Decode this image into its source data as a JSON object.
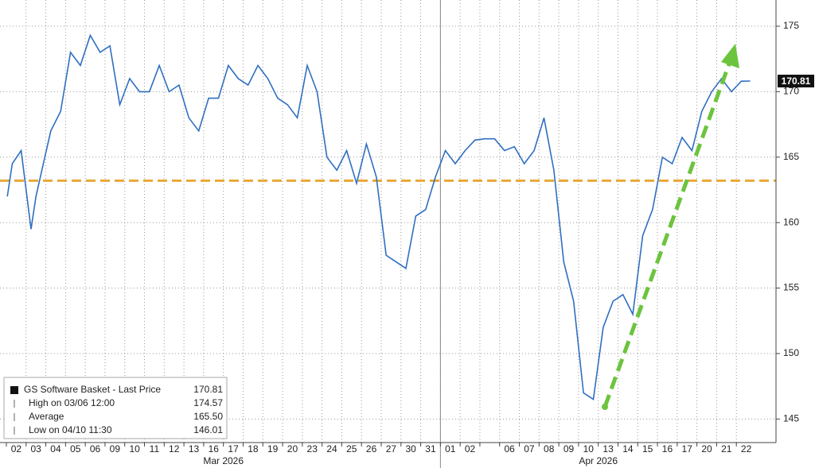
{
  "chart_data": {
    "type": "line",
    "categories": [
      "02",
      "03",
      "04",
      "05",
      "06",
      "09",
      "10",
      "11",
      "12",
      "13",
      "16",
      "17",
      "18",
      "19",
      "20",
      "23",
      "24",
      "25",
      "26",
      "27",
      "30",
      "31",
      "01",
      "02",
      null,
      "06",
      "07",
      "08",
      "09",
      "10",
      "13",
      "14",
      "15",
      "16",
      "17",
      "20",
      "21",
      "22"
    ],
    "months": [
      {
        "label": "Mar 2026",
        "from": 0,
        "to": 22
      },
      {
        "label": "Apr 2026",
        "from": 22,
        "to": 38
      }
    ],
    "xlim": [
      0,
      38
    ],
    "ylim": [
      143.2,
      177
    ],
    "yticks": [
      145,
      150,
      155,
      160,
      165,
      170,
      175
    ],
    "grid": true,
    "series": [
      {
        "name": "GS Software Basket - Last Price",
        "color": "#2f6fc0",
        "x": [
          0.05,
          0.3,
          0.75,
          1.25,
          1.5,
          1.8,
          2.25,
          2.75,
          3.25,
          3.75,
          4.25,
          4.75,
          5.25,
          5.75,
          6.25,
          6.75,
          7.25,
          7.75,
          8.25,
          8.75,
          9.25,
          9.75,
          10.25,
          10.75,
          11.25,
          11.75,
          12.25,
          12.75,
          13.25,
          13.75,
          14.25,
          14.75,
          15.25,
          15.75,
          16.25,
          16.75,
          17.25,
          17.75,
          18.25,
          18.75,
          19.25,
          19.75,
          20.25,
          20.75,
          21.25,
          21.75,
          22.25,
          22.75,
          23.25,
          23.75,
          24.25,
          24.75,
          25.25,
          25.75,
          26.25,
          26.75,
          27.25,
          27.75,
          28.25,
          28.75,
          29.25,
          29.75,
          30.25,
          30.75,
          31.25,
          31.75,
          32.25,
          32.75,
          33.25,
          33.75,
          34.25,
          34.75,
          35.25,
          35.75,
          36.25,
          36.75,
          37.25,
          37.7
        ],
        "values": [
          162,
          164.5,
          165.5,
          159.5,
          162,
          164,
          167,
          168.5,
          173,
          172,
          174.3,
          173,
          173.5,
          169,
          171,
          170,
          170,
          172,
          170,
          170.5,
          168,
          167,
          169.5,
          169.5,
          172,
          171,
          170.5,
          172,
          171,
          169.5,
          169,
          168,
          172,
          170,
          165,
          164,
          165.5,
          163,
          166,
          163.5,
          157.5,
          157,
          156.5,
          160.5,
          161,
          163.5,
          165.5,
          164.5,
          165.5,
          166.3,
          166.4,
          166.4,
          165.5,
          165.8,
          164.5,
          165.5,
          168,
          164,
          157,
          154,
          147,
          146.5,
          152,
          154,
          154.5,
          153,
          159,
          161,
          165,
          164.5,
          166.5,
          165.5,
          168.5,
          170,
          171,
          170,
          170.8,
          170.81
        ]
      }
    ],
    "reference_line": {
      "value": 163.2,
      "color": "#e8a838"
    },
    "arrow_color": "#6cc43e",
    "legend": [
      {
        "text": "GS Software Basket - Last Price",
        "value": 170.81
      },
      {
        "text": "High on 03/06 12:00",
        "value": 174.57
      },
      {
        "text": "Average",
        "value": 165.5,
        "value_label": "165.50"
      },
      {
        "text": "Low on 04/10 11:30",
        "value": 146.01
      }
    ]
  }
}
